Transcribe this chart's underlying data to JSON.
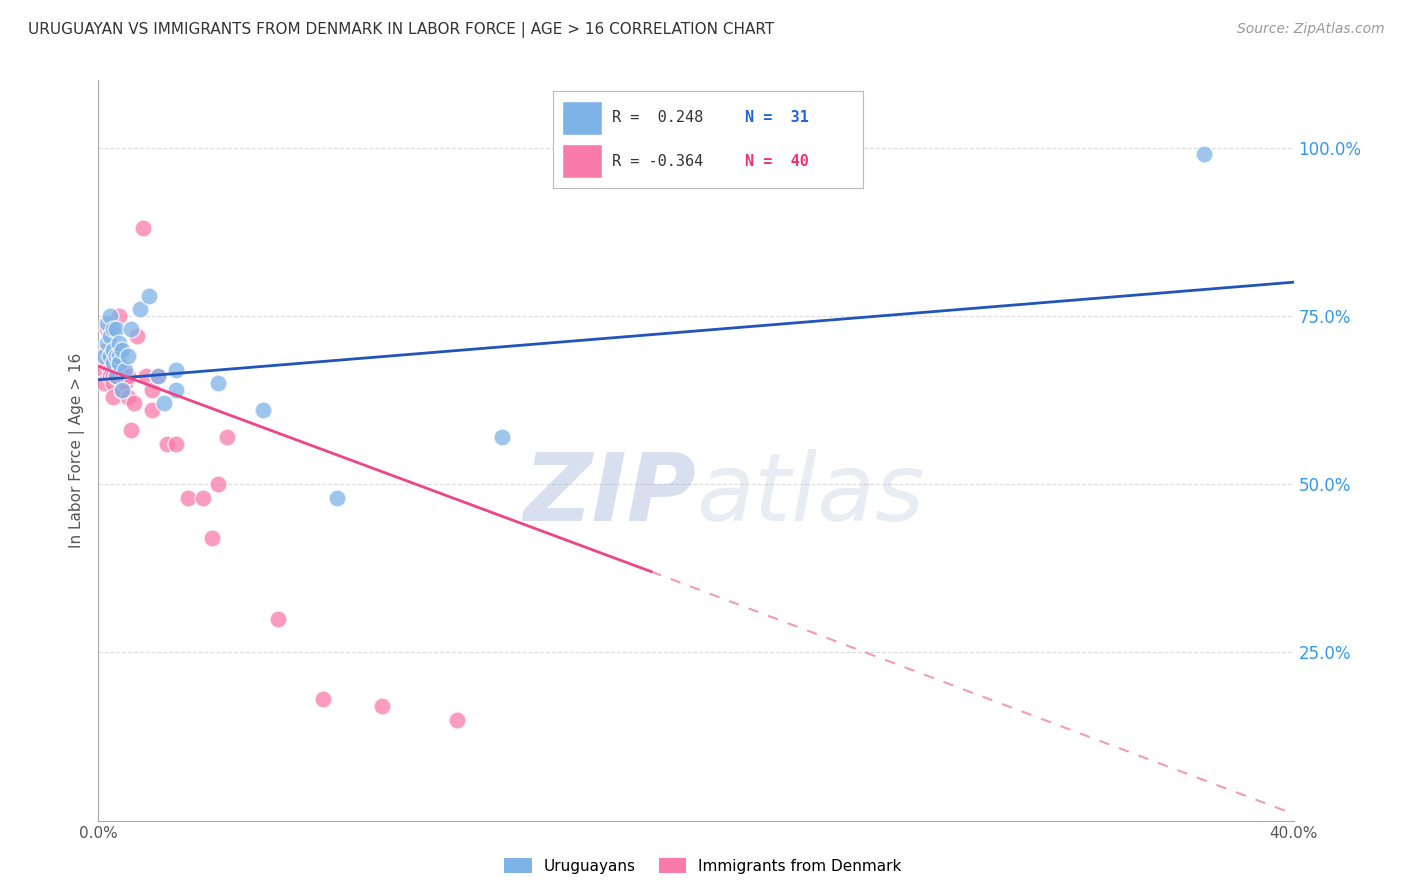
{
  "title": "URUGUAYAN VS IMMIGRANTS FROM DENMARK IN LABOR FORCE | AGE > 16 CORRELATION CHART",
  "source": "Source: ZipAtlas.com",
  "ylabel": "In Labor Force | Age > 16",
  "x_min": 0.0,
  "x_max": 0.4,
  "y_min": 0.0,
  "y_max": 1.1,
  "right_yticklabels": [
    "25.0%",
    "50.0%",
    "75.0%",
    "100.0%"
  ],
  "right_ytick_vals": [
    0.25,
    0.5,
    0.75,
    1.0
  ],
  "legend_R_blue": "R =  0.248",
  "legend_N_blue": "N =  31",
  "legend_R_pink": "R = -0.364",
  "legend_N_pink": "N =  40",
  "blue_color": "#7EB3E8",
  "pink_color": "#F97BAA",
  "blue_line_color": "#2255BB",
  "pink_line_color": "#EE4488",
  "watermark_zip": "ZIP",
  "watermark_atlas": "atlas",
  "watermark_color": "#C8DCEE",
  "blue_scatter_x": [
    0.002,
    0.003,
    0.003,
    0.004,
    0.004,
    0.004,
    0.005,
    0.005,
    0.005,
    0.006,
    0.006,
    0.006,
    0.007,
    0.007,
    0.007,
    0.008,
    0.008,
    0.009,
    0.01,
    0.011,
    0.014,
    0.017,
    0.02,
    0.022,
    0.026,
    0.026,
    0.04,
    0.055,
    0.08,
    0.135,
    0.37
  ],
  "blue_scatter_y": [
    0.69,
    0.71,
    0.74,
    0.69,
    0.72,
    0.75,
    0.7,
    0.68,
    0.73,
    0.69,
    0.66,
    0.73,
    0.69,
    0.71,
    0.68,
    0.7,
    0.64,
    0.67,
    0.69,
    0.73,
    0.76,
    0.78,
    0.66,
    0.62,
    0.67,
    0.64,
    0.65,
    0.61,
    0.48,
    0.57,
    0.99
  ],
  "pink_scatter_x": [
    0.002,
    0.002,
    0.003,
    0.003,
    0.003,
    0.004,
    0.004,
    0.004,
    0.005,
    0.005,
    0.005,
    0.005,
    0.006,
    0.006,
    0.007,
    0.007,
    0.008,
    0.008,
    0.009,
    0.01,
    0.01,
    0.011,
    0.012,
    0.013,
    0.015,
    0.016,
    0.018,
    0.018,
    0.02,
    0.023,
    0.026,
    0.03,
    0.035,
    0.038,
    0.04,
    0.043,
    0.06,
    0.075,
    0.095,
    0.12
  ],
  "pink_scatter_y": [
    0.67,
    0.65,
    0.7,
    0.73,
    0.68,
    0.67,
    0.66,
    0.73,
    0.68,
    0.66,
    0.65,
    0.63,
    0.66,
    0.7,
    0.68,
    0.75,
    0.67,
    0.64,
    0.65,
    0.66,
    0.63,
    0.58,
    0.62,
    0.72,
    0.88,
    0.66,
    0.64,
    0.61,
    0.66,
    0.56,
    0.56,
    0.48,
    0.48,
    0.42,
    0.5,
    0.57,
    0.3,
    0.18,
    0.17,
    0.15
  ],
  "blue_trend_x0": 0.0,
  "blue_trend_x1": 0.4,
  "blue_trend_y0": 0.655,
  "blue_trend_y1": 0.8,
  "pink_trend_solid_x0": 0.0,
  "pink_trend_solid_x1": 0.185,
  "pink_trend_solid_y0": 0.675,
  "pink_trend_solid_y1": 0.37,
  "pink_trend_dash_x0": 0.185,
  "pink_trend_dash_x1": 0.4,
  "pink_trend_dash_y0": 0.37,
  "pink_trend_dash_y1": 0.01,
  "grid_color": "#CCCCCC",
  "background_color": "#FFFFFF",
  "title_fontsize": 11,
  "axis_label_fontsize": 11,
  "tick_fontsize": 11,
  "source_fontsize": 10
}
